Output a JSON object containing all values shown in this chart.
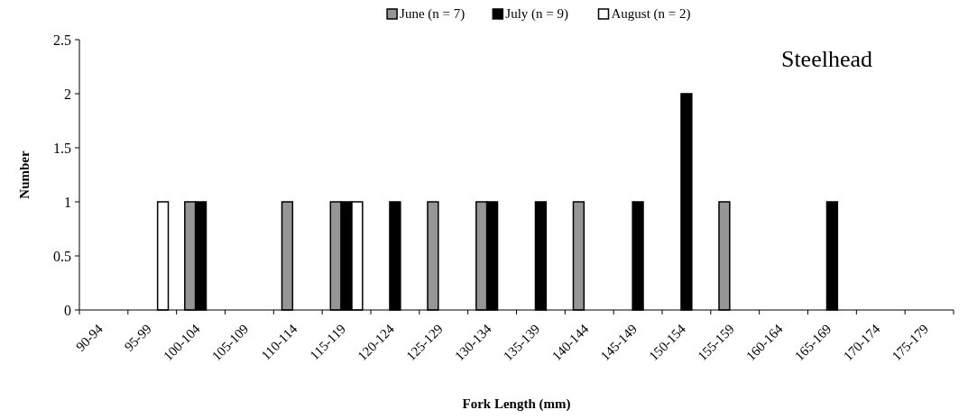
{
  "chart_data": {
    "type": "bar",
    "title": "Steelhead",
    "xlabel": "Fork Length (mm)",
    "ylabel": "Number",
    "categories": [
      "90-94",
      "95-99",
      "100-104",
      "105-109",
      "110-114",
      "115-119",
      "120-124",
      "125-129",
      "130-134",
      "135-139",
      "140-144",
      "145-149",
      "150-154",
      "155-159",
      "160-164",
      "165-169",
      "170-174",
      "175-179"
    ],
    "series": [
      {
        "name": "June (n = 7)",
        "color": "#969696",
        "values": [
          0,
          0,
          1,
          0,
          1,
          1,
          0,
          1,
          1,
          0,
          1,
          0,
          0,
          1,
          0,
          0,
          0,
          0
        ]
      },
      {
        "name": "July (n = 9)",
        "color": "#000000",
        "values": [
          0,
          0,
          1,
          0,
          0,
          1,
          1,
          0,
          1,
          1,
          0,
          1,
          2,
          0,
          0,
          1,
          0,
          0
        ]
      },
      {
        "name": "August (n = 2)",
        "color": "#ffffff",
        "values": [
          0,
          1,
          0,
          0,
          0,
          1,
          0,
          0,
          0,
          0,
          0,
          0,
          0,
          0,
          0,
          0,
          0,
          0
        ]
      }
    ],
    "ylim": [
      0,
      2.5
    ],
    "yticks": [
      0,
      0.5,
      1,
      1.5,
      2,
      2.5
    ],
    "grid": false,
    "legend": "top"
  }
}
